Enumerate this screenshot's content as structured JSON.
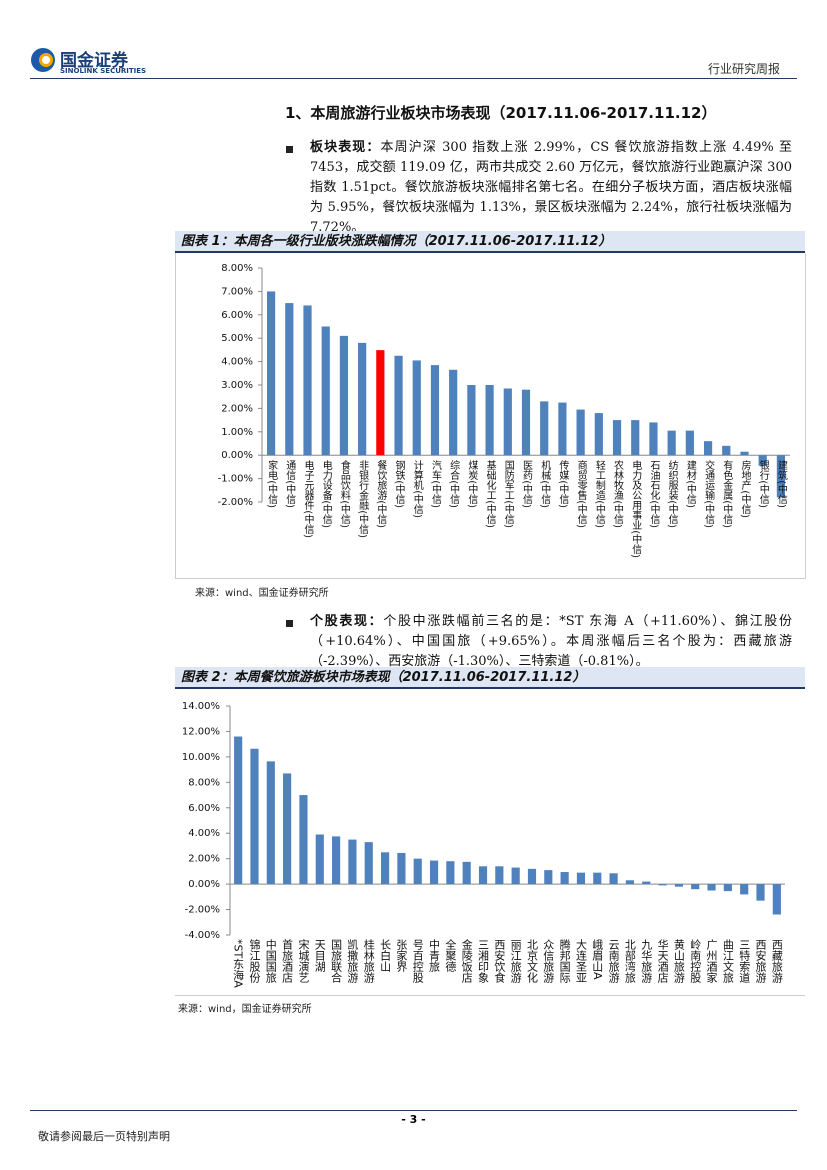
{
  "header": {
    "logo_cn": "国金证券",
    "logo_en": "SINOLINK SECURITIES",
    "report_type": "行业研究周报"
  },
  "section_title": "1、本周旅游行业板块市场表现（2017.11.06-2017.11.12）",
  "paragraphs": [
    {
      "lead": "板块表现：",
      "text": "本周沪深 300 指数上涨 2.99%，CS 餐饮旅游指数上涨 4.49% 至 7453，成交额 119.09 亿，两市共成交 2.60 万亿元，餐饮旅游行业跑赢沪深 300 指数 1.51pct。餐饮旅游板块涨幅排名第七名。在细分子板块方面，酒店板块涨幅为 5.95%，餐饮板块涨幅为 1.13%，景区板块涨幅为 2.24%，旅行社板块涨幅为 7.72%。"
    },
    {
      "lead": "个股表现：",
      "text": "个股中涨跌幅前三名的是：*ST 东海 A（+11.60%）、錦江股份（+10.64%）、中国国旅（+9.65%）。本周涨幅后三名个股为：西藏旅游（-2.39%）、西安旅游（-1.30%）、三特索道（-0.81%）。"
    }
  ],
  "chart_data": [
    {
      "type": "bar",
      "title": "图表 1：本周各一级行业版块涨跌幅情况（2017.11.06-2017.11.12）",
      "categories": [
        "家电(中信)",
        "通信(中信)",
        "电子元器件(中信)",
        "电力设备(中信)",
        "食品饮料(中信)",
        "非银行金融(中信)",
        "餐饮旅游(中信)",
        "钢铁(中信)",
        "计算机(中信)",
        "汽车(中信)",
        "综合(中信)",
        "煤炭(中信)",
        "基础化工(中信)",
        "国防军工(中信)",
        "医药(中信)",
        "机械(中信)",
        "传媒(中信)",
        "商贸零售(中信)",
        "轻工制造(中信)",
        "农林牧渔(中信)",
        "电力及公用事业(中信)",
        "石油石化(中信)",
        "纺织服装(中信)",
        "建材(中信)",
        "交通运输(中信)",
        "有色金属(中信)",
        "房地产(中信)",
        "银行(中信)",
        "建筑(中信)"
      ],
      "values": [
        7.0,
        6.5,
        6.4,
        5.5,
        5.1,
        4.8,
        4.49,
        4.25,
        4.05,
        3.85,
        3.65,
        3.0,
        3.0,
        2.85,
        2.8,
        2.3,
        2.25,
        1.95,
        1.8,
        1.5,
        1.5,
        1.4,
        1.05,
        1.05,
        0.6,
        0.4,
        0.15,
        -0.45,
        -1.8
      ],
      "colors": [
        "#4f81bd",
        "#4f81bd",
        "#4f81bd",
        "#4f81bd",
        "#4f81bd",
        "#4f81bd",
        "#ff0000",
        "#4f81bd",
        "#4f81bd",
        "#4f81bd",
        "#4f81bd",
        "#4f81bd",
        "#4f81bd",
        "#4f81bd",
        "#4f81bd",
        "#4f81bd",
        "#4f81bd",
        "#4f81bd",
        "#4f81bd",
        "#4f81bd",
        "#4f81bd",
        "#4f81bd",
        "#4f81bd",
        "#4f81bd",
        "#4f81bd",
        "#4f81bd",
        "#4f81bd",
        "#4f81bd",
        "#4f81bd"
      ],
      "ylim": [
        -2,
        8
      ],
      "yticks": [
        {
          "value": -2,
          "label": "-2.00%"
        },
        {
          "value": -1,
          "label": "-1.00%"
        },
        {
          "value": 0,
          "label": "0.00%"
        },
        {
          "value": 1,
          "label": "1.00%"
        },
        {
          "value": 2,
          "label": "2.00%"
        },
        {
          "value": 3,
          "label": "3.00%"
        },
        {
          "value": 4,
          "label": "4.00%"
        },
        {
          "value": 5,
          "label": "5.00%"
        },
        {
          "value": 6,
          "label": "6.00%"
        },
        {
          "value": 7,
          "label": "7.00%"
        },
        {
          "value": 8,
          "label": "8.00%"
        }
      ],
      "source": "来源：wind、国金证券研究所"
    },
    {
      "type": "bar",
      "title": "图表 2：本周餐饮旅游板块市场表现（2017.11.06-2017.11.12）",
      "categories": [
        "*ST东海A",
        "锦江股份",
        "中国国旅",
        "首旅酒店",
        "宋城演艺",
        "天目湖",
        "国旅联合",
        "凯撒旅游",
        "桂林旅游",
        "长白山",
        "张家界",
        "号百控股",
        "中青旅",
        "全聚德",
        "金陵饭店",
        "三湘印象",
        "西安饮食",
        "丽江旅游",
        "北京文化",
        "众信旅游",
        "腾邦国际",
        "大连圣亚",
        "峨眉山A",
        "云南旅游",
        "北部湾旅",
        "九华旅游",
        "华天酒店",
        "黄山旅游",
        "岭南控股",
        "广州酒家",
        "曲江文旅",
        "三特索道",
        "西安旅游",
        "西藏旅游"
      ],
      "values": [
        11.6,
        10.64,
        9.65,
        8.7,
        7.0,
        3.9,
        3.75,
        3.5,
        3.3,
        2.5,
        2.45,
        2.0,
        1.85,
        1.8,
        1.75,
        1.4,
        1.4,
        1.3,
        1.2,
        1.1,
        0.95,
        0.9,
        0.9,
        0.85,
        0.3,
        0.2,
        -0.1,
        -0.2,
        -0.4,
        -0.5,
        -0.55,
        -0.81,
        -1.3,
        -2.39
      ],
      "color": "#4f81bd",
      "ylim": [
        -4,
        14
      ],
      "yticks": [
        {
          "value": -4,
          "label": "-4.00%"
        },
        {
          "value": -2,
          "label": "-2.00%"
        },
        {
          "value": 0,
          "label": "0.00%"
        },
        {
          "value": 2,
          "label": "2.00%"
        },
        {
          "value": 4,
          "label": "4.00%"
        },
        {
          "value": 6,
          "label": "6.00%"
        },
        {
          "value": 8,
          "label": "8.00%"
        },
        {
          "value": 10,
          "label": "10.00%"
        },
        {
          "value": 12,
          "label": "12.00%"
        },
        {
          "value": 14,
          "label": "14.00%"
        }
      ],
      "source": "来源：wind，国金证券研究所"
    }
  ],
  "footer": {
    "page": "- 3 -",
    "disclaimer": "敬请参阅最后一页特别声明"
  }
}
